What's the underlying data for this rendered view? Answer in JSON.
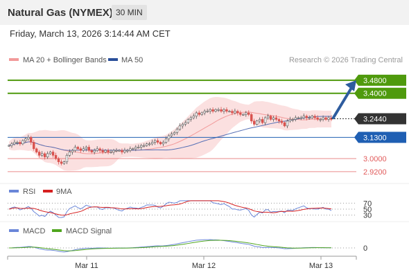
{
  "header": {
    "title": "Natural Gas (NYMEX)",
    "interval": "30 MIN",
    "datetime": "Friday, March 13, 2026 3:14:44 AM CET"
  },
  "legend": {
    "ma20": "MA 20 + Bollinger Bands",
    "ma50": "MA 50",
    "credit": "Research © 2026 Trading Central",
    "rsi": "RSI",
    "rsi_ma": "9MA",
    "macd": "MACD",
    "macd_signal": "MACD Signal"
  },
  "colors": {
    "resistance": "#4f9a0d",
    "support": "#1f5fb3",
    "level_red": "#e15a5a",
    "arrow": "#2e5c9e",
    "ma20": "#f29a9a",
    "ma50": "#556fb5",
    "bb_fill": "#fbe0e0",
    "candle_up": "#555555",
    "candle_down": "#d9534f",
    "rsi": "#6a86d8",
    "rsi_ma": "#d62020",
    "macd": "#6a86d8",
    "macd_signal": "#4fa51e"
  },
  "chart_data": {
    "type": "candlestick",
    "ylim": [
      2.86,
      3.56
    ],
    "x_ticks": [
      "Mar 11",
      "Mar 12",
      "Mar 13"
    ],
    "current_price": "3.2440",
    "levels": [
      {
        "label": "3.4800",
        "value": 3.48,
        "kind": "resistance"
      },
      {
        "label": "3.4000",
        "value": 3.4,
        "kind": "resistance"
      },
      {
        "label": "3.1300",
        "value": 3.13,
        "kind": "support"
      },
      {
        "label": "3.0000",
        "value": 3.0,
        "kind": "level"
      },
      {
        "label": "2.9200",
        "value": 2.92,
        "kind": "level"
      }
    ],
    "close_series": [
      3.08,
      3.09,
      3.1,
      3.1,
      3.09,
      3.11,
      3.12,
      3.13,
      3.1,
      3.06,
      3.04,
      3.02,
      3.03,
      3.01,
      3.03,
      3.04,
      3.02,
      3.0,
      2.98,
      2.97,
      2.98,
      3.02,
      3.04,
      3.05,
      3.07,
      3.06,
      3.05,
      3.06,
      3.07,
      3.05,
      3.04,
      3.05,
      3.06,
      3.05,
      3.04,
      3.05,
      3.04,
      3.04,
      3.05,
      3.05,
      3.05,
      3.04,
      3.05,
      3.05,
      3.06,
      3.06,
      3.07,
      3.07,
      3.08,
      3.08,
      3.09,
      3.09,
      3.1,
      3.11,
      3.1,
      3.09,
      3.1,
      3.12,
      3.14,
      3.15,
      3.16,
      3.18,
      3.2,
      3.21,
      3.22,
      3.24,
      3.25,
      3.26,
      3.28,
      3.27,
      3.28,
      3.29,
      3.29,
      3.3,
      3.29,
      3.3,
      3.3,
      3.29,
      3.3,
      3.29,
      3.29,
      3.28,
      3.29,
      3.28,
      3.27,
      3.27,
      3.28,
      3.27,
      3.23,
      3.21,
      3.23,
      3.24,
      3.22,
      3.25,
      3.26,
      3.24,
      3.25,
      3.24,
      3.23,
      3.22,
      3.2,
      3.23,
      3.24,
      3.24,
      3.25,
      3.25,
      3.25,
      3.26,
      3.25,
      3.25,
      3.26,
      3.25,
      3.24,
      3.24,
      3.25,
      3.24,
      3.25,
      3.24
    ],
    "rsi_axis": [
      70,
      50,
      30
    ],
    "macd_axis": [
      0
    ]
  }
}
